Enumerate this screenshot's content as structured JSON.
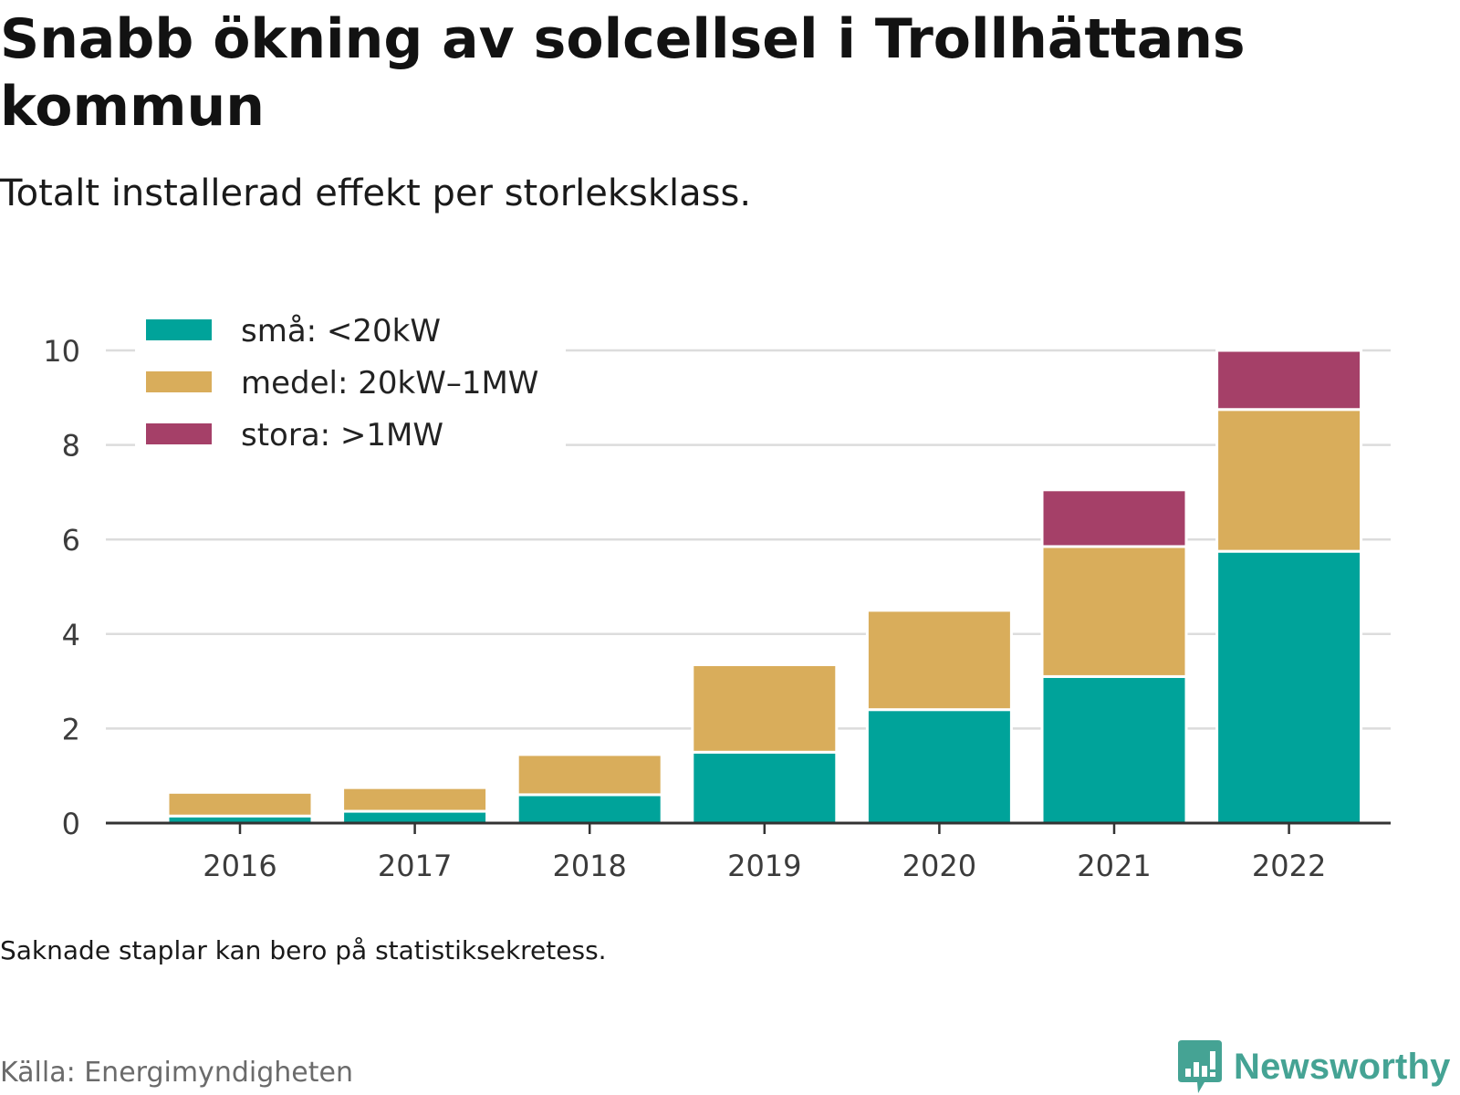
{
  "title": "Snabb ökning av solcellsel i Trollhättans kommun",
  "subtitle": "Totalt installerad effekt per storleksklass.",
  "note": "Saknade staplar kan bero på statistiksekretess.",
  "source": "Källa: Energimyndigheten",
  "brand": {
    "name": "Newsworthy",
    "icon": "bar-chart-speech-bubble-icon",
    "color": "#45a394"
  },
  "chart_data": {
    "type": "bar",
    "stacked": true,
    "categories": [
      "2016",
      "2017",
      "2018",
      "2019",
      "2020",
      "2021",
      "2022"
    ],
    "series": [
      {
        "name": "små: <20kW",
        "color": "#00a39a",
        "values": [
          0.15,
          0.25,
          0.6,
          1.5,
          2.4,
          3.1,
          5.75
        ]
      },
      {
        "name": "medel: 20kW–1MW",
        "color": "#d9ad5b",
        "values": [
          0.5,
          0.5,
          0.85,
          1.85,
          2.1,
          2.75,
          3.0
        ]
      },
      {
        "name": "stora: >1MW",
        "color": "#a54068",
        "values": [
          0,
          0,
          0,
          0,
          0,
          1.2,
          1.25
        ]
      }
    ],
    "yticks": [
      "0",
      "2",
      "4",
      "6",
      "8",
      "10"
    ],
    "ylim": [
      0,
      10
    ],
    "grid": true,
    "legend_position": "top-left"
  }
}
